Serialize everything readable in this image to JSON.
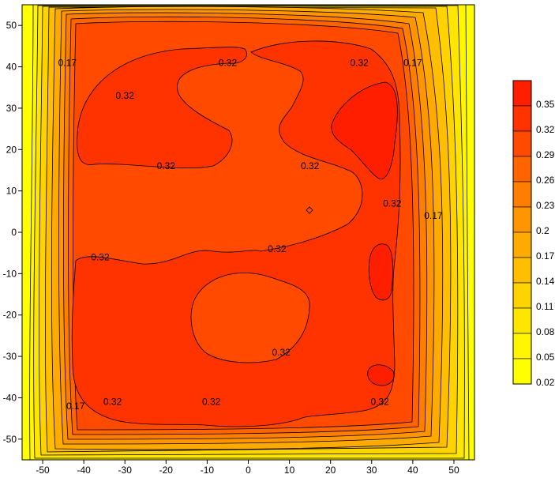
{
  "chart_data": {
    "type": "heatmap",
    "subtype": "filled-contour",
    "title": "",
    "xlabel": "",
    "ylabel": "",
    "xlim": [
      -55,
      55
    ],
    "ylim": [
      -55,
      55
    ],
    "x_ticks": [
      "-50",
      "-40",
      "-30",
      "-20",
      "-10",
      "0",
      "10",
      "20",
      "30",
      "40",
      "50"
    ],
    "y_ticks": [
      "50",
      "40",
      "30",
      "20",
      "10",
      "0",
      "-10",
      "-20",
      "-30",
      "-40",
      "-50"
    ],
    "x_tick_values": [
      -50,
      -40,
      -30,
      -20,
      -10,
      0,
      10,
      20,
      30,
      40,
      50
    ],
    "y_tick_values": [
      50,
      40,
      30,
      20,
      10,
      0,
      -10,
      -20,
      -30,
      -40,
      -50
    ],
    "levels": [
      0.02,
      0.05,
      0.08,
      0.11,
      0.14,
      0.17,
      0.2,
      0.23,
      0.26,
      0.29,
      0.32,
      0.35
    ],
    "colorbar_labels": [
      "0.35",
      "0.32",
      "0.29",
      "0.26",
      "0.23",
      "0.2",
      "0.17",
      "0.14",
      "0.11",
      "0.08",
      "0.05",
      "0.02"
    ],
    "colorbar_colors": [
      "#ff1e00",
      "#ff3300",
      "#ff4a00",
      "#ff6400",
      "#ff7e00",
      "#ff9500",
      "#ffaa00",
      "#ffbf00",
      "#ffd300",
      "#ffe600",
      "#fff600",
      "#ffff00"
    ],
    "contour_labels": [
      {
        "text": "0.17",
        "x": -44,
        "y": 41
      },
      {
        "text": "0.17",
        "x": 40,
        "y": 41
      },
      {
        "text": "0.17",
        "x": 45,
        "y": 4
      },
      {
        "text": "0.17",
        "x": -42,
        "y": -42
      },
      {
        "text": "0.32",
        "x": -30,
        "y": 33
      },
      {
        "text": "0.32",
        "x": -5,
        "y": 41
      },
      {
        "text": "0.32",
        "x": 27,
        "y": 41
      },
      {
        "text": "0.32",
        "x": -20,
        "y": 16
      },
      {
        "text": "0.32",
        "x": 15,
        "y": 16
      },
      {
        "text": "0.32",
        "x": 35,
        "y": 7
      },
      {
        "text": "0.32",
        "x": -36,
        "y": -6
      },
      {
        "text": "0.32",
        "x": 7,
        "y": -4
      },
      {
        "text": "0.32",
        "x": 8,
        "y": -29
      },
      {
        "text": "0.32",
        "x": -33,
        "y": -41
      },
      {
        "text": "0.32",
        "x": -9,
        "y": -41
      },
      {
        "text": "0.32",
        "x": 32,
        "y": -41
      }
    ]
  }
}
